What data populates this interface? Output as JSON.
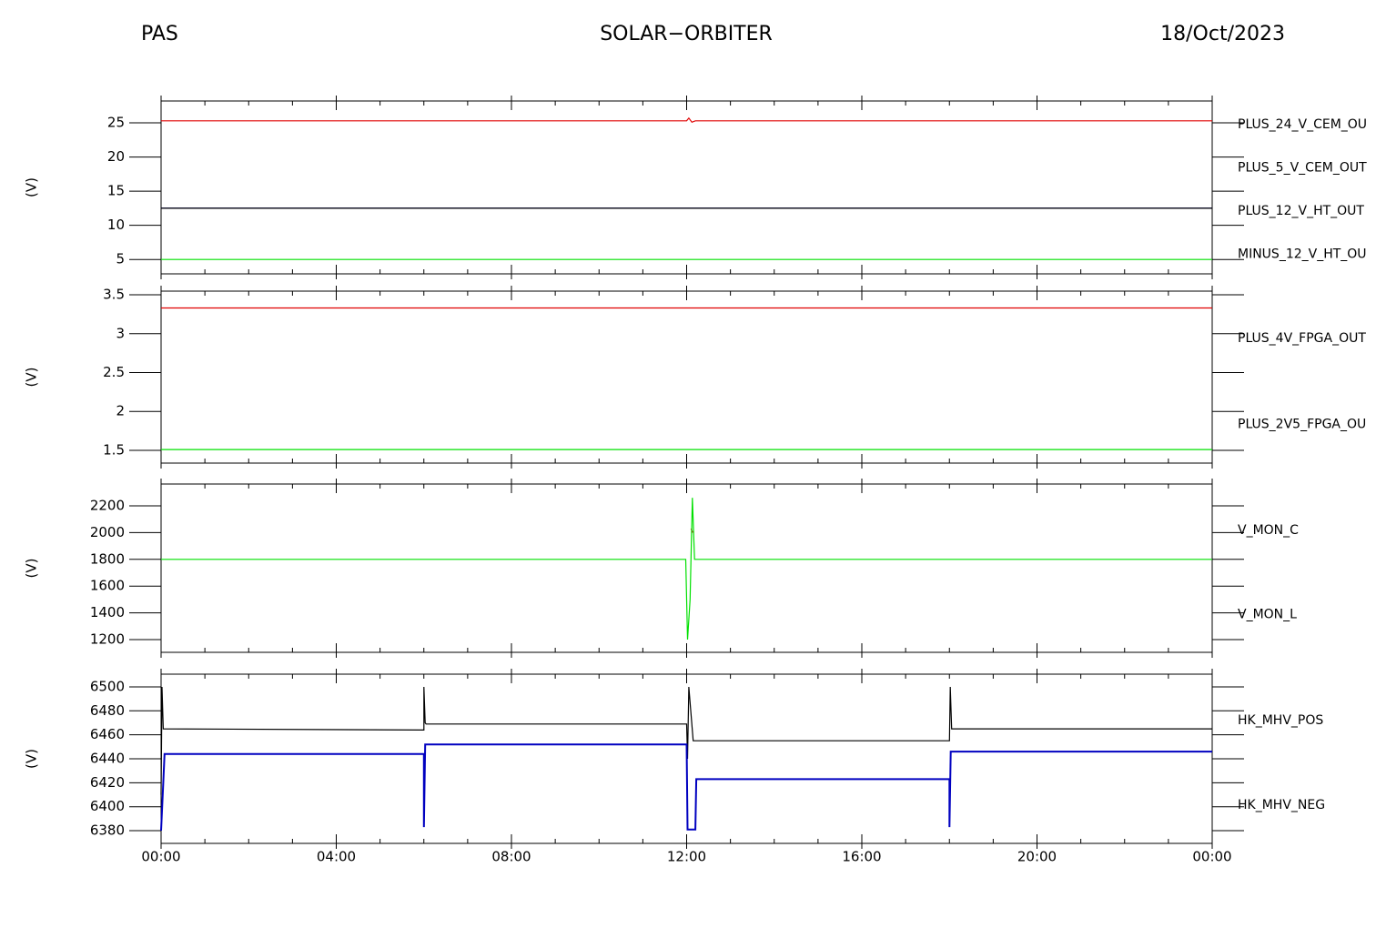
{
  "header": {
    "left": "PAS",
    "center": "SOLAR−ORBITER",
    "right": "18/Oct/2023"
  },
  "chart_data": [
    {
      "type": "line",
      "ylabel": "(V)",
      "xlim": [
        0,
        24
      ],
      "ylim": [
        2.9,
        28.2
      ],
      "yticks": [
        5,
        10,
        15,
        20,
        25
      ],
      "series": [
        {
          "name": "PLUS_24_V_CEM_OU",
          "color": "#e00000",
          "x": [
            0,
            12,
            12.05,
            12.12,
            12.2,
            24
          ],
          "values": [
            25.3,
            25.3,
            25.7,
            25.1,
            25.3,
            25.3
          ]
        },
        {
          "name": "PLUS_5_V_CEM_OUT",
          "color": "#00e000",
          "x": [
            0,
            24
          ],
          "values": [
            5,
            5
          ]
        },
        {
          "name": "PLUS_12_V_HT_OUT",
          "color": "#0000c0",
          "x": [
            0,
            24
          ],
          "values": [
            12.5,
            12.5
          ]
        },
        {
          "name": "MINUS_12_V_HT_OU",
          "color": "#000000",
          "x": [
            0,
            24
          ],
          "values": [
            12.5,
            12.5
          ]
        }
      ]
    },
    {
      "type": "line",
      "ylabel": "(V)",
      "xlim": [
        0,
        24
      ],
      "ylim": [
        1.336,
        3.547
      ],
      "yticks": [
        1.5,
        2.0,
        2.5,
        3.0,
        3.5
      ],
      "series": [
        {
          "name": "PLUS_4V_FPGA_OUT",
          "color": "#e00000",
          "x": [
            0,
            24
          ],
          "values": [
            3.33,
            3.33
          ]
        },
        {
          "name": "PLUS_2V5_FPGA_OU",
          "color": "#00e000",
          "x": [
            0,
            24
          ],
          "values": [
            1.51,
            1.51
          ]
        }
      ]
    },
    {
      "type": "line",
      "ylabel": "(V)",
      "xlim": [
        0,
        24
      ],
      "ylim": [
        1105,
        2363
      ],
      "yticks": [
        1200,
        1400,
        1600,
        1800,
        2000,
        2200
      ],
      "series": [
        {
          "name": "V_MON_C",
          "color": "#e00000",
          "x": [
            12.1,
            12.14
          ],
          "values": [
            2030,
            2000
          ]
        },
        {
          "name": "V_MON_L",
          "color": "#00e000",
          "x": [
            0,
            11.98,
            12.02,
            12.08,
            12.13,
            12.18,
            12.2,
            24
          ],
          "values": [
            1800,
            1800,
            1200,
            1500,
            2260,
            1800,
            1800,
            1800
          ]
        }
      ]
    },
    {
      "type": "line",
      "ylabel": "(V)",
      "xlim": [
        0,
        24
      ],
      "ylim": [
        6369.4,
        6510.6
      ],
      "yticks": [
        6380,
        6400,
        6420,
        6440,
        6460,
        6480,
        6500
      ],
      "xticks": [
        {
          "value": 0,
          "label": "00:00"
        },
        {
          "value": 4,
          "label": "04:00"
        },
        {
          "value": 8,
          "label": "08:00"
        },
        {
          "value": 12,
          "label": "12:00"
        },
        {
          "value": 16,
          "label": "16:00"
        },
        {
          "value": 20,
          "label": "20:00"
        },
        {
          "value": 24,
          "label": "00:00"
        }
      ],
      "xminor": [
        1,
        2,
        3,
        5,
        6,
        7,
        9,
        10,
        11,
        13,
        14,
        15,
        17,
        18,
        19,
        21,
        22,
        23
      ],
      "series": [
        {
          "name": "HK_MHV_POS",
          "color": "#000000",
          "x": [
            0,
            0.02,
            0.05,
            6,
            6,
            6.03,
            6.05,
            12,
            12.02,
            12.05,
            12.15,
            12.2,
            18,
            18.02,
            18.05,
            24
          ],
          "values": [
            6410,
            6500,
            6465,
            6464,
            6500,
            6470,
            6469,
            6469,
            6440,
            6500,
            6455,
            6455,
            6455,
            6500,
            6465,
            6465
          ]
        },
        {
          "name": "HK_MHV_NEG",
          "color": "#0000c0",
          "x": [
            0,
            0.05,
            0.08,
            6,
            6,
            6.03,
            6.05,
            12,
            12.02,
            12.2,
            12.22,
            18,
            18,
            18.03,
            18.05,
            24
          ],
          "values": [
            6380,
            6420,
            6444,
            6444,
            6383,
            6452,
            6452,
            6452,
            6381,
            6381,
            6423,
            6423,
            6383,
            6446,
            6446,
            6446
          ]
        }
      ]
    }
  ]
}
